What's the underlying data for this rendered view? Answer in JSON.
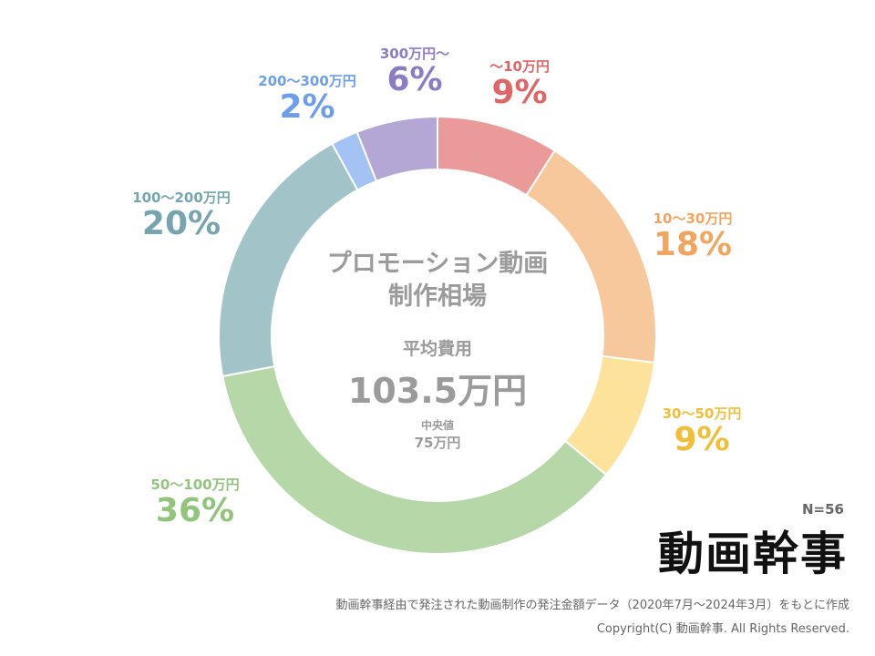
{
  "chart_data": {
    "type": "pie",
    "subtype": "donut",
    "title": "プロモーション動画\n制作相場",
    "slices": [
      {
        "label": "～10万円",
        "display": "9%",
        "value": 9,
        "color": "#ea9a98",
        "label_color": "#e06666"
      },
      {
        "label": "10～30万円",
        "display": "18%",
        "value": 18,
        "color": "#f7c89c",
        "label_color": "#f1a55f"
      },
      {
        "label": "30～50万円",
        "display": "9%",
        "value": 9,
        "color": "#fde29b",
        "label_color": "#f0be37"
      },
      {
        "label": "50～100万円",
        "display": "36%",
        "value": 36,
        "color": "#b6d7a8",
        "label_color": "#93c47d"
      },
      {
        "label": "100～200万円",
        "display": "20%",
        "value": 20,
        "color": "#a2c4c9",
        "label_color": "#76a5af"
      },
      {
        "label": "200～300万円",
        "display": "2%",
        "value": 2,
        "color": "#a4c2f4",
        "label_color": "#6d9eeb"
      },
      {
        "label": "300万円～",
        "display": "6%",
        "value": 6,
        "color": "#b4a7d6",
        "label_color": "#8e7cc3"
      }
    ]
  },
  "center": {
    "title": "プロモーション動画\n制作相場",
    "average_label": "平均費用",
    "average_value": "103.5万円",
    "median_label": "中央値",
    "median_value": "75万円"
  },
  "sample_size": "N=56",
  "logo_text": "動画幹事",
  "source_note": "動画幹事経由で発注された動画制作の発注金額データ（2020年7月～2024年3月）をもとに作成",
  "copyright": "Copyright(C) 動画幹事. All Rights Reserved."
}
